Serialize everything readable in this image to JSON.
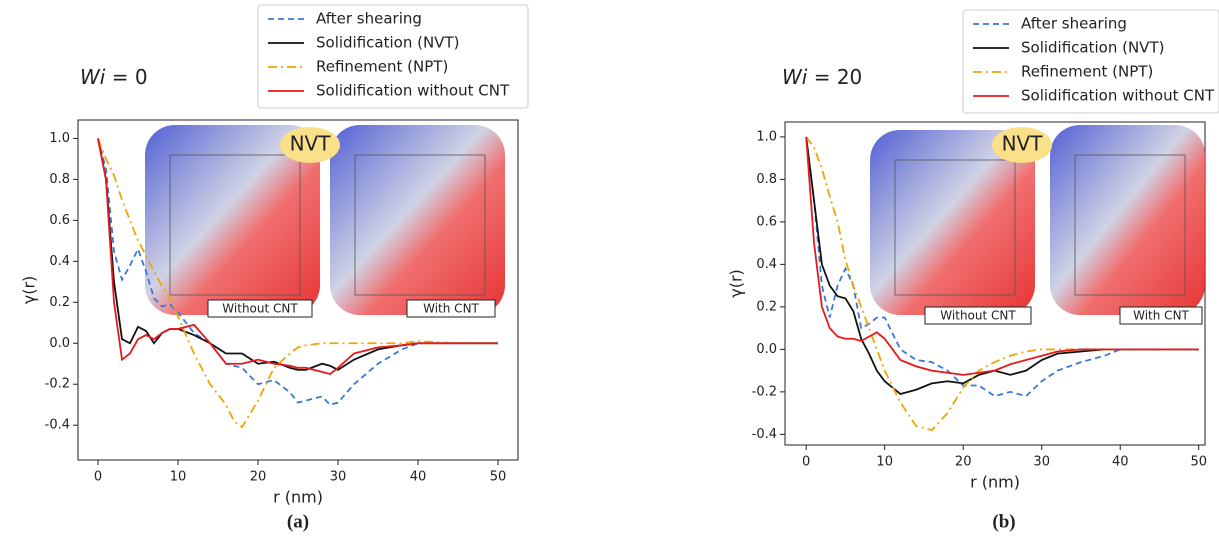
{
  "chart_data": [
    {
      "type": "line",
      "condition_symbol": "Wi",
      "condition_value": "= 0",
      "caption": "(a)",
      "x_label": "r (nm)",
      "y_label": "γ(r)",
      "annotations": [
        "NVT",
        "Without CNT",
        "With CNT"
      ],
      "xlim": [
        -2.5,
        52.5
      ],
      "ylim": [
        -0.57,
        1.09
      ],
      "xticks": [
        0,
        10,
        20,
        30,
        40,
        50
      ],
      "yticks": [
        {
          "value": 1.0,
          "label": "1.0"
        },
        0.8,
        0.6,
        0.4,
        0.2,
        {
          "value": 0,
          "label": "0.0"
        },
        -0.2,
        -0.4
      ],
      "x": [
        0,
        1,
        2,
        3,
        4,
        5,
        6,
        7,
        8,
        9,
        10,
        12,
        14,
        16,
        17,
        18,
        20,
        22,
        24,
        25,
        26,
        28,
        29,
        30,
        32,
        35,
        38,
        40,
        45,
        50
      ],
      "series": [
        {
          "name": "After shearing",
          "color": "#3a78d8",
          "linestyle": "dashed",
          "values": [
            1.0,
            0.85,
            0.45,
            0.31,
            0.38,
            0.46,
            0.35,
            0.22,
            0.18,
            0.19,
            0.15,
            0.05,
            0.0,
            -0.1,
            -0.11,
            -0.12,
            -0.2,
            -0.18,
            -0.24,
            -0.29,
            -0.28,
            -0.26,
            -0.3,
            -0.29,
            -0.2,
            -0.1,
            -0.03,
            0.0,
            0.0,
            0.0
          ]
        },
        {
          "name": "Solidification (NVT)",
          "color": "#111111",
          "linestyle": "solid",
          "values": [
            1.0,
            0.8,
            0.3,
            0.02,
            0.0,
            0.08,
            0.06,
            0.0,
            0.05,
            0.07,
            0.07,
            0.04,
            0.0,
            -0.05,
            -0.05,
            -0.05,
            -0.1,
            -0.09,
            -0.12,
            -0.13,
            -0.13,
            -0.1,
            -0.11,
            -0.13,
            -0.08,
            -0.03,
            -0.01,
            0.0,
            0.0,
            0.0
          ]
        },
        {
          "name": "Refinement (NPT)",
          "color": "#f0a500",
          "linestyle": "dashdot",
          "values": [
            1.0,
            0.9,
            0.82,
            0.7,
            0.6,
            0.5,
            0.43,
            0.35,
            0.28,
            0.22,
            0.13,
            -0.05,
            -0.2,
            -0.3,
            -0.38,
            -0.41,
            -0.28,
            -0.12,
            -0.05,
            -0.02,
            -0.01,
            0.0,
            0.0,
            0.0,
            0.0,
            0.0,
            0.0,
            0.01,
            0.0,
            0.0
          ]
        },
        {
          "name": "Solidification without CNT",
          "color": "#e41a1c",
          "linestyle": "solid",
          "values": [
            1.0,
            0.8,
            0.2,
            -0.08,
            -0.05,
            0.02,
            0.04,
            0.02,
            0.05,
            0.07,
            0.07,
            0.09,
            0.0,
            -0.1,
            -0.1,
            -0.1,
            -0.08,
            -0.1,
            -0.11,
            -0.12,
            -0.12,
            -0.14,
            -0.15,
            -0.12,
            -0.05,
            -0.02,
            -0.01,
            0.0,
            0.0,
            0.0
          ]
        }
      ]
    },
    {
      "type": "line",
      "condition_symbol": "Wi",
      "condition_value": "= 20",
      "caption": "(b)",
      "x_label": "r (nm)",
      "y_label": "γ(r)",
      "annotations": [
        "NVT",
        "Without CNT",
        "With CNT"
      ],
      "xlim": [
        -2.7,
        50.8
      ],
      "ylim": [
        -0.45,
        1.07
      ],
      "xticks": [
        0,
        10,
        20,
        30,
        40,
        50
      ],
      "yticks": [
        {
          "value": 1.0,
          "label": "1.0"
        },
        0.8,
        0.6,
        0.4,
        0.2,
        {
          "value": 0,
          "label": "0.0"
        },
        -0.2,
        -0.4
      ],
      "x": [
        0,
        1,
        2,
        3,
        4,
        5,
        6,
        7,
        8,
        9,
        10,
        12,
        14,
        16,
        18,
        20,
        22,
        24,
        26,
        28,
        30,
        32,
        35,
        38,
        40,
        45,
        50
      ],
      "series": [
        {
          "name": "After shearing",
          "color": "#3a78d8",
          "linestyle": "dashed",
          "values": [
            1.0,
            0.7,
            0.3,
            0.15,
            0.3,
            0.38,
            0.3,
            0.1,
            0.12,
            0.15,
            0.15,
            0.0,
            -0.05,
            -0.06,
            -0.1,
            -0.17,
            -0.17,
            -0.22,
            -0.2,
            -0.22,
            -0.15,
            -0.1,
            -0.06,
            -0.03,
            0.0,
            0.0,
            0.0
          ]
        },
        {
          "name": "Solidification (NVT)",
          "color": "#111111",
          "linestyle": "solid",
          "values": [
            1.0,
            0.7,
            0.4,
            0.3,
            0.25,
            0.24,
            0.18,
            0.05,
            -0.02,
            -0.1,
            -0.15,
            -0.21,
            -0.19,
            -0.16,
            -0.15,
            -0.16,
            -0.12,
            -0.1,
            -0.12,
            -0.1,
            -0.05,
            -0.02,
            -0.01,
            0.0,
            0.0,
            0.0,
            0.0
          ]
        },
        {
          "name": "Refinement (NPT)",
          "color": "#f0a500",
          "linestyle": "dashdot",
          "values": [
            1.0,
            0.95,
            0.85,
            0.72,
            0.6,
            0.42,
            0.3,
            0.2,
            0.1,
            0.0,
            -0.1,
            -0.25,
            -0.36,
            -0.38,
            -0.3,
            -0.18,
            -0.1,
            -0.06,
            -0.03,
            -0.01,
            0.0,
            0.0,
            0.0,
            0.0,
            0.0,
            0.0,
            0.0
          ]
        },
        {
          "name": "Solidification without CNT",
          "color": "#e41a1c",
          "linestyle": "solid",
          "values": [
            1.0,
            0.5,
            0.2,
            0.1,
            0.06,
            0.05,
            0.05,
            0.04,
            0.06,
            0.08,
            0.05,
            -0.05,
            -0.08,
            -0.1,
            -0.11,
            -0.12,
            -0.11,
            -0.1,
            -0.07,
            -0.05,
            -0.03,
            -0.01,
            0.0,
            0.0,
            0.0,
            0.0,
            0.0
          ]
        }
      ]
    }
  ]
}
